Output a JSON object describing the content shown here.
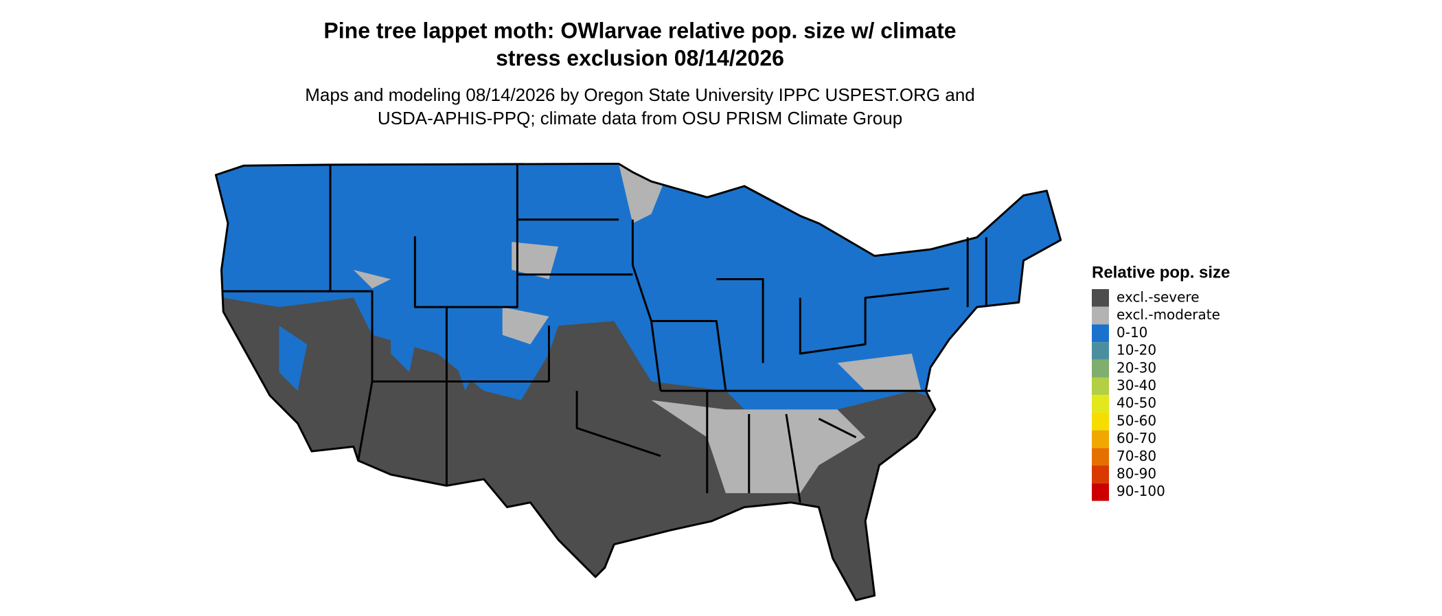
{
  "title": "Pine tree lappet moth: OWlarvae relative pop. size w/ climate stress exclusion 08/14/2026",
  "title_lines": [
    "Pine tree lappet moth: OWlarvae relative pop. size w/ climate",
    "stress exclusion 08/14/2026"
  ],
  "subtitle_lines": [
    "Maps and modeling 08/14/2026 by Oregon State University IPPC USPEST.ORG and",
    "USDA-APHIS-PPQ; climate data from OSU PRISM Climate Group"
  ],
  "legend": {
    "title": "Relative pop. size",
    "items": [
      {
        "label": "excl.-severe",
        "color": "#4d4d4d"
      },
      {
        "label": "excl.-moderate",
        "color": "#b3b3b3"
      },
      {
        "label": "0-10",
        "color": "#1a72cc"
      },
      {
        "label": "10-20",
        "color": "#4a8fa0"
      },
      {
        "label": "20-30",
        "color": "#7fae6e"
      },
      {
        "label": "30-40",
        "color": "#b2cf45"
      },
      {
        "label": "40-50",
        "color": "#e3e81c"
      },
      {
        "label": "50-60",
        "color": "#f7dc00"
      },
      {
        "label": "60-70",
        "color": "#f0a800"
      },
      {
        "label": "70-80",
        "color": "#e57000"
      },
      {
        "label": "80-90",
        "color": "#d83a00"
      },
      {
        "label": "90-100",
        "color": "#cc0000"
      }
    ]
  }
}
